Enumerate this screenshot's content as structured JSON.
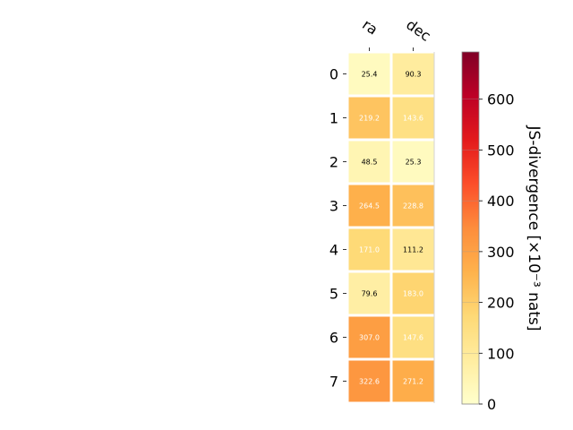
{
  "chart_data": {
    "type": "heatmap",
    "x_labels": [
      "ra",
      "dec"
    ],
    "y_labels": [
      "0",
      "1",
      "2",
      "3",
      "4",
      "5",
      "6",
      "7"
    ],
    "values": [
      [
        25.4,
        90.3
      ],
      [
        219.2,
        143.6
      ],
      [
        48.5,
        25.3
      ],
      [
        264.5,
        228.8
      ],
      [
        171.0,
        111.2
      ],
      [
        79.6,
        183.0
      ],
      [
        307.0,
        147.6
      ],
      [
        322.6,
        271.2
      ]
    ],
    "value_labels": [
      [
        "25.4",
        "90.3"
      ],
      [
        "219.2",
        "143.6"
      ],
      [
        "48.5",
        "25.3"
      ],
      [
        "264.5",
        "228.8"
      ],
      [
        "171.0",
        "111.2"
      ],
      [
        "79.6",
        "183.0"
      ],
      [
        "307.0",
        "147.6"
      ],
      [
        "322.6",
        "271.2"
      ]
    ],
    "colorbar": {
      "label": "JS-divergence [×10⁻³ nats]",
      "ticks": [
        "0",
        "100",
        "200",
        "300",
        "400",
        "500",
        "600"
      ],
      "range": [
        0,
        693
      ],
      "colormap": "YlOrRd"
    },
    "colormap_stops": [
      "#ffffcc",
      "#ffeda0",
      "#fed976",
      "#feb24c",
      "#fd8d3c",
      "#fc4e2a",
      "#e31a1c",
      "#bd0026",
      "#800026"
    ],
    "text_color_dark": "#000000",
    "text_color_light": "#ffffff",
    "light_text_threshold": 140
  }
}
